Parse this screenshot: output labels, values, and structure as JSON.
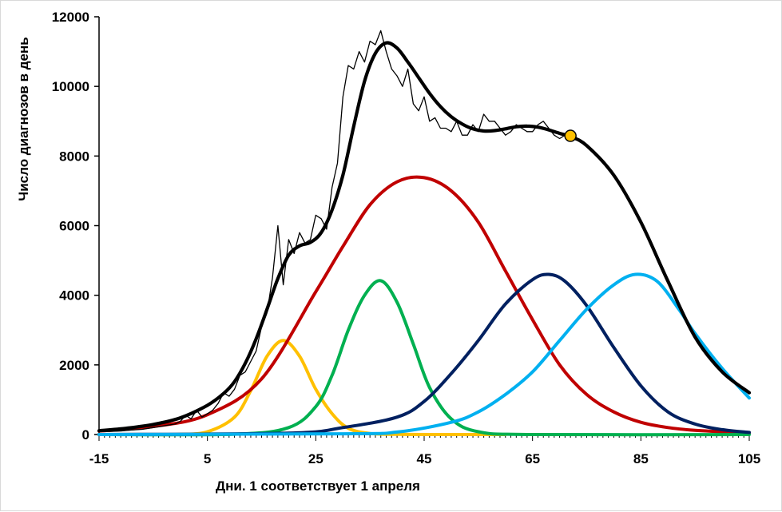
{
  "chart_data": {
    "type": "line",
    "title": "",
    "xlabel": "Дни. 1 соответствует 1 апреля",
    "ylabel": "Число диагнозов в день",
    "xlim": [
      -15,
      105
    ],
    "ylim": [
      0,
      12000
    ],
    "x_ticks": [
      -15,
      5,
      25,
      45,
      65,
      85,
      105
    ],
    "y_ticks": [
      0,
      2000,
      4000,
      6000,
      8000,
      10000,
      12000
    ],
    "x_tick_labels": [
      "-15",
      "5",
      "25",
      "45",
      "65",
      "85",
      "105"
    ],
    "y_tick_labels": [
      "0",
      "2000",
      "4000",
      "6000",
      "8000",
      "10000",
      "12000"
    ],
    "grid": false,
    "legend": "none",
    "series": [
      {
        "color": "#000000",
        "style": "thin",
        "x": [
          -15,
          -13,
          -11,
          -9,
          -7,
          -5,
          -3,
          -1,
          0,
          1,
          2,
          3,
          4,
          5,
          6,
          7,
          8,
          9,
          10,
          11,
          12,
          13,
          14,
          15,
          16,
          17,
          18,
          19,
          20,
          21,
          22,
          23,
          24,
          25,
          26,
          27,
          28,
          29,
          30,
          31,
          32,
          33,
          34,
          35,
          36,
          37,
          38,
          39,
          40,
          41,
          42,
          43,
          44,
          45,
          46,
          47,
          48,
          49,
          50,
          51,
          52,
          53,
          54,
          55,
          56,
          57,
          58,
          59,
          60,
          61,
          62,
          63,
          64,
          65,
          66,
          67,
          68,
          69,
          70,
          71,
          72
        ],
        "y": [
          80,
          90,
          100,
          130,
          150,
          200,
          250,
          300,
          380,
          550,
          450,
          700,
          500,
          600,
          700,
          900,
          1200,
          1100,
          1300,
          1700,
          1800,
          2100,
          2400,
          3100,
          3500,
          4500,
          6000,
          4300,
          5600,
          5200,
          5800,
          5500,
          5600,
          6300,
          6200,
          5900,
          7100,
          7800,
          9700,
          10600,
          10500,
          11000,
          10700,
          11300,
          11200,
          11600,
          11000,
          10500,
          10300,
          10000,
          10500,
          9500,
          9300,
          9700,
          9000,
          9100,
          8800,
          8800,
          8700,
          9000,
          8600,
          8600,
          8900,
          8700,
          9200,
          9000,
          9000,
          8800,
          8600,
          8700,
          8900,
          8800,
          8700,
          8700,
          8900,
          9000,
          8800,
          8600,
          8500,
          8600,
          8600
        ]
      },
      {
        "color": "#000000",
        "style": "total-fit",
        "x": [
          -15,
          -10,
          -5,
          0,
          5,
          8,
          10,
          12,
          14,
          16,
          18,
          20,
          22,
          24,
          26,
          28,
          30,
          32,
          34,
          36,
          38,
          40,
          42,
          44,
          46,
          48,
          50,
          52,
          54,
          56,
          58,
          60,
          62,
          64,
          66,
          68,
          70,
          72,
          75,
          80,
          85,
          90,
          95,
          100,
          105
        ],
        "y": [
          110,
          180,
          290,
          480,
          840,
          1180,
          1520,
          2050,
          2750,
          3600,
          4480,
          5150,
          5420,
          5520,
          5800,
          6450,
          7450,
          8850,
          10150,
          10950,
          11250,
          11100,
          10700,
          10250,
          9800,
          9420,
          9130,
          8920,
          8780,
          8720,
          8730,
          8780,
          8840,
          8860,
          8830,
          8750,
          8650,
          8560,
          8300,
          7450,
          6100,
          4400,
          2800,
          1800,
          1200
        ]
      },
      {
        "color": "#FFC000",
        "style": "component",
        "x": [
          -15,
          -5,
          0,
          5,
          10,
          13,
          16,
          19,
          22,
          25,
          28,
          31,
          35,
          40,
          50,
          60
        ],
        "y": [
          0,
          0,
          5,
          80,
          500,
          1260,
          2250,
          2700,
          2250,
          1300,
          600,
          180,
          30,
          5,
          0,
          0
        ]
      },
      {
        "color": "#C00000",
        "style": "component",
        "x": [
          -15,
          -5,
          5,
          15,
          25,
          30,
          35,
          40,
          45,
          50,
          55,
          60,
          65,
          70,
          75,
          80,
          85,
          90,
          95,
          100,
          105
        ],
        "y": [
          100,
          230,
          570,
          1600,
          4100,
          5400,
          6600,
          7260,
          7380,
          7000,
          6100,
          4700,
          3300,
          2000,
          1150,
          650,
          350,
          200,
          120,
          80,
          50
        ]
      },
      {
        "color": "#00B050",
        "style": "component",
        "x": [
          -15,
          10,
          20,
          25,
          28,
          31,
          34,
          37,
          40,
          43,
          46,
          50,
          55,
          65,
          105
        ],
        "y": [
          0,
          10,
          200,
          800,
          1700,
          3000,
          4000,
          4420,
          3800,
          2600,
          1350,
          450,
          80,
          0,
          0
        ]
      },
      {
        "color": "#002060",
        "style": "component",
        "x": [
          -15,
          20,
          30,
          40,
          45,
          50,
          55,
          60,
          65,
          68,
          71,
          75,
          80,
          85,
          90,
          95,
          100,
          105
        ],
        "y": [
          0,
          40,
          200,
          500,
          950,
          1750,
          2700,
          3750,
          4450,
          4600,
          4400,
          3700,
          2500,
          1400,
          650,
          300,
          140,
          60
        ]
      },
      {
        "color": "#00B0F0",
        "style": "component",
        "x": [
          -15,
          30,
          40,
          50,
          55,
          60,
          65,
          70,
          75,
          80,
          84,
          88,
          92,
          95,
          100,
          105
        ],
        "y": [
          0,
          20,
          70,
          350,
          650,
          1150,
          1800,
          2700,
          3600,
          4300,
          4600,
          4400,
          3600,
          2900,
          1900,
          1050
        ]
      }
    ],
    "marker": {
      "x": 72,
      "y": 8580,
      "color": "#FFC000"
    }
  }
}
